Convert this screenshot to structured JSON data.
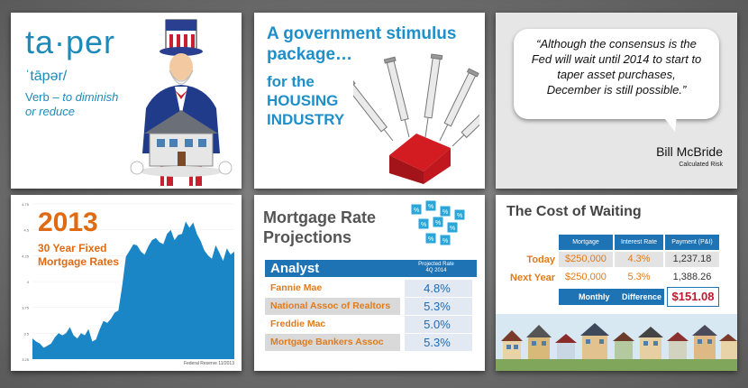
{
  "panel1": {
    "word": "ta·per",
    "pronunciation": "ˈtāpər/",
    "definition_pos": "Verb",
    "definition_text": " – to diminish",
    "definition_text2": "or reduce"
  },
  "panel2": {
    "title_line1": "A government stimulus",
    "title_line2": "package…",
    "sub_line1": "for the",
    "sub_line2": "HOUSING",
    "sub_line3": "INDUSTRY"
  },
  "panel3": {
    "quote_line1": "“Although the consensus is the",
    "quote_line2": "Fed will wait until 2014 to start to",
    "quote_line3": "taper asset purchases,",
    "quote_line4": "December is still possible.”",
    "author": "Bill McBride",
    "author_source": "Calculated Risk"
  },
  "panel4": {
    "year": "2013",
    "title_line1": "30 Year Fixed",
    "title_line2": "Mortgage Rates",
    "source": "Federal Reserve 11/2013",
    "colors": {
      "area": "#1b86c6",
      "title": "#e06a12"
    }
  },
  "chart_data": {
    "type": "area",
    "title": "30 Year Fixed Mortgage Rates",
    "y_ticks": [
      "4.75",
      "4.5",
      "4.25",
      "4",
      "3.75",
      "3.5",
      "3.25"
    ],
    "ylim": [
      3.25,
      4.75
    ],
    "values": [
      3.45,
      3.42,
      3.4,
      3.36,
      3.38,
      3.4,
      3.46,
      3.5,
      3.48,
      3.5,
      3.56,
      3.48,
      3.45,
      3.5,
      3.48,
      3.54,
      3.42,
      3.44,
      3.54,
      3.62,
      3.6,
      3.64,
      3.7,
      3.72,
      3.96,
      4.24,
      4.3,
      4.36,
      4.35,
      4.29,
      4.26,
      4.34,
      4.4,
      4.42,
      4.38,
      4.36,
      4.46,
      4.5,
      4.4,
      4.45,
      4.46,
      4.58,
      4.52,
      4.57,
      4.46,
      4.39,
      4.3,
      4.25,
      4.22,
      4.35,
      4.28,
      4.2,
      4.32,
      4.26,
      4.29
    ]
  },
  "panel5": {
    "title_line1": "Mortgage Rate",
    "title_line2": "Projections",
    "header_analyst": "Analyst",
    "header_rate_line1": "Projected Rate",
    "header_rate_line2": "4Q  2014",
    "rows": [
      {
        "analyst": "Fannie Mae",
        "rate": "4.8%"
      },
      {
        "analyst": "National Assoc of Realtors",
        "rate": "5.3%"
      },
      {
        "analyst": "Freddie Mac",
        "rate": "5.0%"
      },
      {
        "analyst": "Mortgage Bankers Assoc",
        "rate": "5.3%"
      }
    ]
  },
  "panel6": {
    "title": "The Cost of Waiting",
    "headers": [
      "Mortgage",
      "Interest Rate",
      "Payment (P&I)"
    ],
    "rows": [
      {
        "label": "Today",
        "mortgage": "$250,000",
        "rate": "4.3%",
        "payment": "1,237.18"
      },
      {
        "label": "Next Year",
        "mortgage": "$250,000",
        "rate": "5.3%",
        "payment": "1,388.26"
      }
    ],
    "diff_label1": "Monthly",
    "diff_label2": "Difference",
    "diff_value": "$151.08"
  }
}
